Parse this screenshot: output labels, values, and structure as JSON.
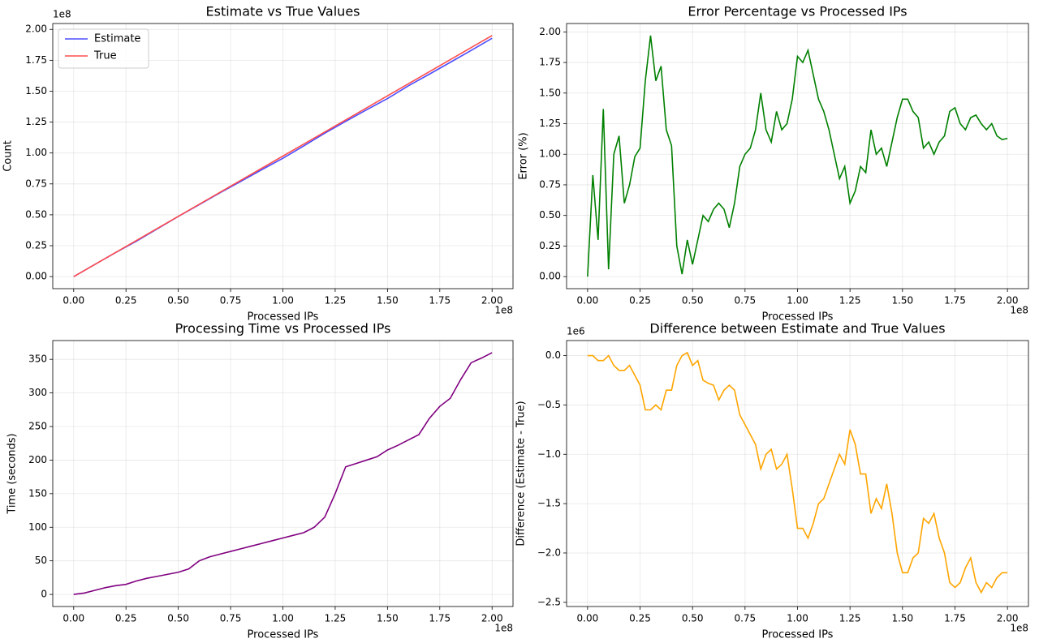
{
  "chart_data": [
    {
      "type": "line",
      "title": "Estimate vs True Values",
      "x_label": "Processed IPs",
      "y_label": "Count",
      "x_offset_label": "1e8",
      "y_offset_label": "1e8",
      "x": [
        0,
        10000000,
        20000000,
        30000000,
        40000000,
        50000000,
        60000000,
        70000000,
        80000000,
        90000000,
        100000000,
        110000000,
        120000000,
        130000000,
        140000000,
        150000000,
        160000000,
        170000000,
        180000000,
        190000000,
        200000000
      ],
      "series": [
        {
          "name": "Estimate",
          "color": "#4d4dff",
          "values": [
            0,
            9750000,
            19400000,
            28700000,
            38650000,
            48650000,
            58200000,
            67900000,
            77100000,
            86600000,
            95750000,
            105750000,
            116000000,
            125550000,
            134950000,
            144050000,
            154350000,
            163750000,
            173350000,
            182950000,
            192800000
          ]
        },
        {
          "name": "True",
          "color": "#ff4d4d",
          "values": [
            0,
            9750000,
            19500000,
            29250000,
            39000000,
            48750000,
            58500000,
            68250000,
            78000000,
            87750000,
            97500000,
            107250000,
            117000000,
            126750000,
            136500000,
            146250000,
            156000000,
            165750000,
            175500000,
            185250000,
            195000000
          ]
        }
      ],
      "xlim": [
        -10000000,
        210000000
      ],
      "ylim": [
        -9750000,
        204750000
      ],
      "xticks": [
        {
          "value": 0,
          "label": "0.00"
        },
        {
          "value": 25000000,
          "label": "0.25"
        },
        {
          "value": 50000000,
          "label": "0.50"
        },
        {
          "value": 75000000,
          "label": "0.75"
        },
        {
          "value": 100000000,
          "label": "1.00"
        },
        {
          "value": 125000000,
          "label": "1.25"
        },
        {
          "value": 150000000,
          "label": "1.50"
        },
        {
          "value": 175000000,
          "label": "1.75"
        },
        {
          "value": 200000000,
          "label": "2.00"
        }
      ],
      "yticks": [
        {
          "value": 0,
          "label": "0.00"
        },
        {
          "value": 25000000,
          "label": "0.25"
        },
        {
          "value": 50000000,
          "label": "0.50"
        },
        {
          "value": 75000000,
          "label": "0.75"
        },
        {
          "value": 100000000,
          "label": "1.00"
        },
        {
          "value": 125000000,
          "label": "1.25"
        },
        {
          "value": 150000000,
          "label": "1.50"
        },
        {
          "value": 175000000,
          "label": "1.75"
        },
        {
          "value": 200000000,
          "label": "2.00"
        }
      ],
      "grid": true,
      "legend": "upper left"
    },
    {
      "type": "line",
      "title": "Error Percentage vs Processed IPs",
      "x_label": "Processed IPs",
      "y_label": "Error (%)",
      "x_offset_label": "1e8",
      "x": [
        0,
        2500000,
        5000000,
        7500000,
        10000000,
        12500000,
        15000000,
        17500000,
        20000000,
        22500000,
        25000000,
        27500000,
        30000000,
        32500000,
        35000000,
        37500000,
        40000000,
        42500000,
        45000000,
        47500000,
        50000000,
        52500000,
        55000000,
        57500000,
        60000000,
        62500000,
        65000000,
        67500000,
        70000000,
        72500000,
        75000000,
        77500000,
        80000000,
        82500000,
        85000000,
        87500000,
        90000000,
        92500000,
        95000000,
        97500000,
        100000000,
        102500000,
        105000000,
        107500000,
        110000000,
        112500000,
        115000000,
        117500000,
        120000000,
        122500000,
        125000000,
        127500000,
        130000000,
        132500000,
        135000000,
        137500000,
        140000000,
        142500000,
        145000000,
        147500000,
        150000000,
        152500000,
        155000000,
        157500000,
        160000000,
        162500000,
        165000000,
        167500000,
        170000000,
        172500000,
        175000000,
        177500000,
        180000000,
        182500000,
        185000000,
        187500000,
        190000000,
        192500000,
        195000000,
        197500000,
        200000000
      ],
      "series": [
        {
          "color": "#008000",
          "values": [
            0,
            0.83,
            0.3,
            1.37,
            0.06,
            1.0,
            1.15,
            0.6,
            0.75,
            0.98,
            1.05,
            1.6,
            1.97,
            1.6,
            1.72,
            1.2,
            1.07,
            0.25,
            0.02,
            0.3,
            0.1,
            0.3,
            0.5,
            0.45,
            0.55,
            0.6,
            0.55,
            0.4,
            0.6,
            0.9,
            1.0,
            1.05,
            1.2,
            1.5,
            1.2,
            1.1,
            1.35,
            1.2,
            1.25,
            1.45,
            1.8,
            1.75,
            1.85,
            1.65,
            1.45,
            1.35,
            1.2,
            1.0,
            0.8,
            0.9,
            0.6,
            0.7,
            0.9,
            0.85,
            1.2,
            1.0,
            1.05,
            0.9,
            1.1,
            1.3,
            1.45,
            1.45,
            1.35,
            1.3,
            1.05,
            1.1,
            1.0,
            1.1,
            1.15,
            1.35,
            1.38,
            1.25,
            1.2,
            1.3,
            1.32,
            1.25,
            1.2,
            1.25,
            1.15,
            1.12,
            1.13
          ]
        }
      ],
      "xlim": [
        -10000000,
        210000000
      ],
      "ylim": [
        -0.0985,
        2.0685
      ],
      "xticks": [
        {
          "value": 0,
          "label": "0.00"
        },
        {
          "value": 25000000,
          "label": "0.25"
        },
        {
          "value": 50000000,
          "label": "0.50"
        },
        {
          "value": 75000000,
          "label": "0.75"
        },
        {
          "value": 100000000,
          "label": "1.00"
        },
        {
          "value": 125000000,
          "label": "1.25"
        },
        {
          "value": 150000000,
          "label": "1.50"
        },
        {
          "value": 175000000,
          "label": "1.75"
        },
        {
          "value": 200000000,
          "label": "2.00"
        }
      ],
      "yticks": [
        {
          "value": 0,
          "label": "0.00"
        },
        {
          "value": 0.25,
          "label": "0.25"
        },
        {
          "value": 0.5,
          "label": "0.50"
        },
        {
          "value": 0.75,
          "label": "0.75"
        },
        {
          "value": 1,
          "label": "1.00"
        },
        {
          "value": 1.25,
          "label": "1.25"
        },
        {
          "value": 1.5,
          "label": "1.50"
        },
        {
          "value": 1.75,
          "label": "1.75"
        },
        {
          "value": 2,
          "label": "2.00"
        }
      ],
      "grid": true
    },
    {
      "type": "line",
      "title": "Processing Time vs Processed IPs",
      "x_label": "Processed IPs",
      "y_label": "Time (seconds)",
      "x_offset_label": "1e8",
      "x": [
        0,
        5000000,
        10000000,
        15000000,
        20000000,
        25000000,
        30000000,
        35000000,
        40000000,
        45000000,
        50000000,
        55000000,
        60000000,
        65000000,
        70000000,
        75000000,
        80000000,
        85000000,
        90000000,
        95000000,
        100000000,
        105000000,
        110000000,
        115000000,
        120000000,
        125000000,
        130000000,
        135000000,
        140000000,
        145000000,
        150000000,
        155000000,
        160000000,
        165000000,
        170000000,
        175000000,
        180000000,
        185000000,
        190000000,
        195000000,
        200000000
      ],
      "series": [
        {
          "color": "#800080",
          "values": [
            0,
            2,
            6,
            10,
            13,
            15,
            20,
            24,
            27,
            30,
            33,
            38,
            50,
            56,
            60,
            64,
            68,
            72,
            76,
            80,
            84,
            88,
            92,
            100,
            115,
            150,
            190,
            195,
            200,
            205,
            215,
            222,
            230,
            238,
            262,
            280,
            292,
            320,
            345,
            352,
            360
          ]
        }
      ],
      "xlim": [
        -10000000,
        210000000
      ],
      "ylim": [
        -18,
        378
      ],
      "xticks": [
        {
          "value": 0,
          "label": "0.00"
        },
        {
          "value": 25000000,
          "label": "0.25"
        },
        {
          "value": 50000000,
          "label": "0.50"
        },
        {
          "value": 75000000,
          "label": "0.75"
        },
        {
          "value": 100000000,
          "label": "1.00"
        },
        {
          "value": 125000000,
          "label": "1.25"
        },
        {
          "value": 150000000,
          "label": "1.50"
        },
        {
          "value": 175000000,
          "label": "1.75"
        },
        {
          "value": 200000000,
          "label": "2.00"
        }
      ],
      "yticks": [
        0,
        50,
        100,
        150,
        200,
        250,
        300,
        350
      ],
      "grid": true
    },
    {
      "type": "line",
      "title": "Difference between Estimate and True Values",
      "x_label": "Processed IPs",
      "y_label": "Difference (Estimate - True)",
      "x_offset_label": "1e8",
      "y_offset_label": "1e6",
      "x": [
        0,
        2500000,
        5000000,
        7500000,
        10000000,
        12500000,
        15000000,
        17500000,
        20000000,
        22500000,
        25000000,
        27500000,
        30000000,
        32500000,
        35000000,
        37500000,
        40000000,
        42500000,
        45000000,
        47500000,
        50000000,
        52500000,
        55000000,
        57500000,
        60000000,
        62500000,
        65000000,
        67500000,
        70000000,
        72500000,
        75000000,
        77500000,
        80000000,
        82500000,
        85000000,
        87500000,
        90000000,
        92500000,
        95000000,
        97500000,
        100000000,
        102500000,
        105000000,
        107500000,
        110000000,
        112500000,
        115000000,
        117500000,
        120000000,
        122500000,
        125000000,
        127500000,
        130000000,
        132500000,
        135000000,
        137500000,
        140000000,
        142500000,
        145000000,
        147500000,
        150000000,
        152500000,
        155000000,
        157500000,
        160000000,
        162500000,
        165000000,
        167500000,
        170000000,
        172500000,
        175000000,
        177500000,
        180000000,
        182500000,
        185000000,
        187500000,
        190000000,
        192500000,
        195000000,
        197500000,
        200000000
      ],
      "series": [
        {
          "color": "#ffa500",
          "values": [
            0,
            0,
            -50000,
            -50000,
            0,
            -100000,
            -150000,
            -150000,
            -100000,
            -200000,
            -300000,
            -550000,
            -550000,
            -500000,
            -550000,
            -350000,
            -350000,
            -100000,
            0,
            30000,
            -100000,
            -50000,
            -250000,
            -280000,
            -300000,
            -450000,
            -350000,
            -300000,
            -350000,
            -600000,
            -700000,
            -800000,
            -900000,
            -1150000,
            -1000000,
            -950000,
            -1150000,
            -1100000,
            -1000000,
            -1350000,
            -1750000,
            -1750000,
            -1850000,
            -1700000,
            -1500000,
            -1450000,
            -1300000,
            -1150000,
            -1000000,
            -1100000,
            -750000,
            -900000,
            -1200000,
            -1200000,
            -1600000,
            -1450000,
            -1550000,
            -1300000,
            -1600000,
            -2000000,
            -2200000,
            -2200000,
            -2050000,
            -2000000,
            -1650000,
            -1700000,
            -1600000,
            -1850000,
            -2000000,
            -2300000,
            -2350000,
            -2300000,
            -2150000,
            -2050000,
            -2300000,
            -2400000,
            -2300000,
            -2350000,
            -2250000,
            -2200000,
            -2200000
          ]
        }
      ],
      "xlim": [
        -10000000,
        210000000
      ],
      "ylim": [
        -2542500,
        152500
      ],
      "xticks": [
        {
          "value": 0,
          "label": "0.00"
        },
        {
          "value": 25000000,
          "label": "0.25"
        },
        {
          "value": 50000000,
          "label": "0.50"
        },
        {
          "value": 75000000,
          "label": "0.75"
        },
        {
          "value": 100000000,
          "label": "1.00"
        },
        {
          "value": 125000000,
          "label": "1.25"
        },
        {
          "value": 150000000,
          "label": "1.50"
        },
        {
          "value": 175000000,
          "label": "1.75"
        },
        {
          "value": 200000000,
          "label": "2.00"
        }
      ],
      "yticks": [
        {
          "value": -2500000,
          "label": "−2.5"
        },
        {
          "value": -2000000,
          "label": "−2.0"
        },
        {
          "value": -1500000,
          "label": "−1.5"
        },
        {
          "value": -1000000,
          "label": "−1.0"
        },
        {
          "value": -500000,
          "label": "−0.5"
        },
        {
          "value": 0,
          "label": "0.0"
        }
      ],
      "grid": true
    }
  ]
}
